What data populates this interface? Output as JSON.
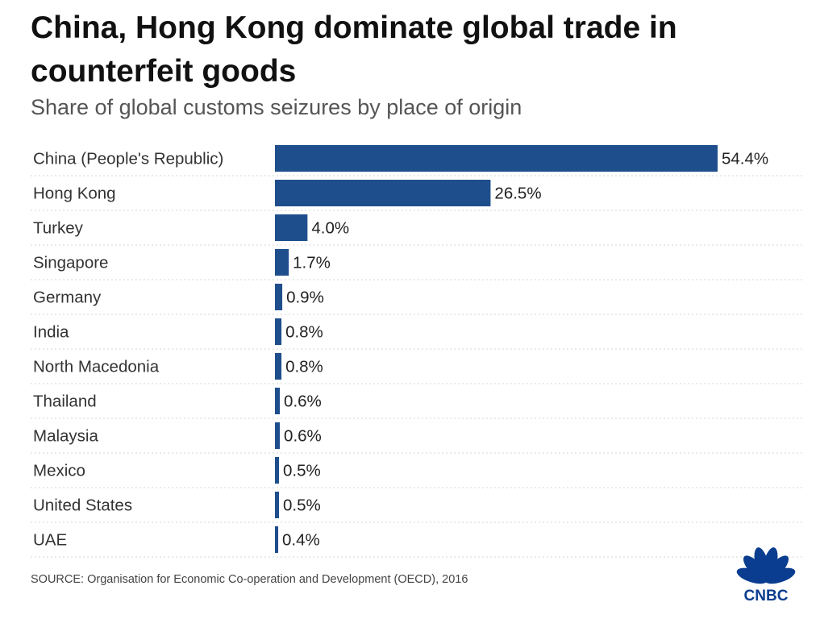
{
  "title": "China, Hong Kong dominate global trade in counterfeit goods",
  "subtitle": "Share of global customs seizures by place of origin",
  "source": "SOURCE: Organisation for Economic Co-operation and Development (OECD), 2016",
  "logo": {
    "text": "CNBC",
    "icon": "peacock-logo-icon"
  },
  "colors": {
    "bar": "#1f4e8c",
    "divider": "#d4d4d4",
    "logo": "#0a3d8f"
  },
  "chart_data": {
    "type": "bar",
    "orientation": "horizontal",
    "categories": [
      "China (People's Republic)",
      "Hong Kong",
      "Turkey",
      "Singapore",
      "Germany",
      "India",
      "North Macedonia",
      "Thailand",
      "Malaysia",
      "Mexico",
      "United States",
      "UAE"
    ],
    "values": [
      54.4,
      26.5,
      4.0,
      1.7,
      0.9,
      0.8,
      0.8,
      0.6,
      0.6,
      0.5,
      0.5,
      0.4
    ],
    "value_labels": [
      "54.4%",
      "26.5%",
      "4.0%",
      "1.7%",
      "0.9%",
      "0.8%",
      "0.8%",
      "0.6%",
      "0.6%",
      "0.5%",
      "0.5%",
      "0.4%"
    ],
    "unit": "%",
    "xlim": [
      0,
      54.4
    ],
    "grid": false,
    "legend": "none"
  }
}
